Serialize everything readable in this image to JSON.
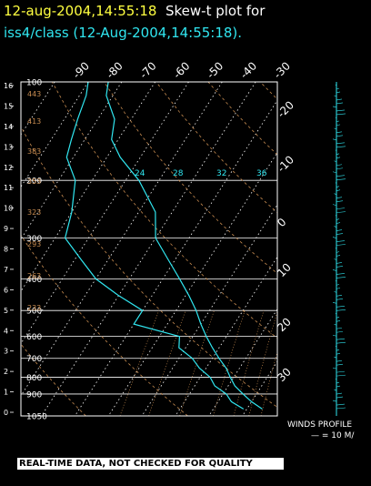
{
  "header": {
    "date_time": "12-aug-2004,14:55:18",
    "plot_label": "Skew-t plot for",
    "source": "iss4/class (12-Aug-2004,14:55:18)."
  },
  "winds": {
    "label": "WINDS PROFILE",
    "scale": "— = 10 M/"
  },
  "disclaimer": "REAL-TIME DATA, NOT CHECKED FOR QUALITY",
  "colors": {
    "background": "#000000",
    "title_yellow": "#ffff40",
    "trace_cyan": "#30e6f0",
    "grid_white": "#ffffff",
    "mixing_ratio_orange": "#c88c50"
  },
  "chart_data": {
    "type": "line",
    "title": "Skew-t plot for iss4/class (12-Aug-2004,14:55:18).",
    "pressure_axis_hPa": {
      "ticks": [
        100,
        200,
        300,
        400,
        500,
        600,
        700,
        800,
        900,
        1050
      ],
      "labels": [
        "100",
        "200",
        "300",
        "400",
        "500",
        "600",
        "700",
        "800",
        "900",
        "1050"
      ]
    },
    "height_axis_km": {
      "ticks": [
        0,
        1,
        2,
        3,
        4,
        5,
        6,
        7,
        8,
        9,
        10,
        11,
        12,
        13,
        14,
        15,
        16
      ],
      "labels": [
        "0",
        "1",
        "2",
        "3",
        "4",
        "5",
        "6",
        "7",
        "8",
        "9",
        "10",
        "11",
        "12",
        "13",
        "14",
        "15",
        "16"
      ]
    },
    "temperature_axis_C": {
      "ticks": [
        -90,
        -80,
        -70,
        -60,
        -50,
        -40,
        -30
      ],
      "labels": [
        "-90",
        "-80",
        "-70",
        "-60",
        "-50",
        "-40",
        "-30"
      ]
    },
    "isotherm_labels_right": [
      "-20",
      "-10",
      "0",
      "10",
      "20",
      "30"
    ],
    "mixing_ratio_labels": [
      "24",
      "28",
      "32",
      "36"
    ],
    "dry_adiabat_labels": [
      "443",
      "413",
      "383",
      "353",
      "323",
      "293",
      "263",
      "233"
    ],
    "series": [
      {
        "name": "temperature",
        "points_T_C_p_hPa": [
          [
            24.6,
            1000
          ],
          [
            20,
            950
          ],
          [
            16,
            900
          ],
          [
            12,
            850
          ],
          [
            9,
            800
          ],
          [
            6,
            750
          ],
          [
            2,
            700
          ],
          [
            -2,
            650
          ],
          [
            -6,
            600
          ],
          [
            -10,
            550
          ],
          [
            -14,
            500
          ],
          [
            -19,
            450
          ],
          [
            -25,
            400
          ],
          [
            -32,
            350
          ],
          [
            -40,
            300
          ],
          [
            -45,
            250
          ],
          [
            -56,
            200
          ],
          [
            -66,
            170
          ],
          [
            -72,
            150
          ],
          [
            -75,
            130
          ],
          [
            -82,
            110
          ],
          [
            -84,
            100
          ]
        ]
      },
      {
        "name": "dewpoint",
        "points_T_C_p_hPa": [
          [
            19,
            1000
          ],
          [
            14,
            950
          ],
          [
            11,
            900
          ],
          [
            6,
            850
          ],
          [
            3,
            800
          ],
          [
            -2,
            750
          ],
          [
            -6,
            700
          ],
          [
            -12,
            650
          ],
          [
            -14,
            600
          ],
          [
            -30,
            550
          ],
          [
            -30,
            500
          ],
          [
            -40,
            450
          ],
          [
            -50,
            400
          ],
          [
            -58,
            350
          ],
          [
            -67,
            300
          ],
          [
            -70,
            250
          ],
          [
            -75,
            200
          ],
          [
            -82,
            170
          ],
          [
            -84,
            150
          ],
          [
            -86,
            130
          ],
          [
            -88,
            110
          ],
          [
            -90,
            100
          ]
        ]
      }
    ]
  }
}
